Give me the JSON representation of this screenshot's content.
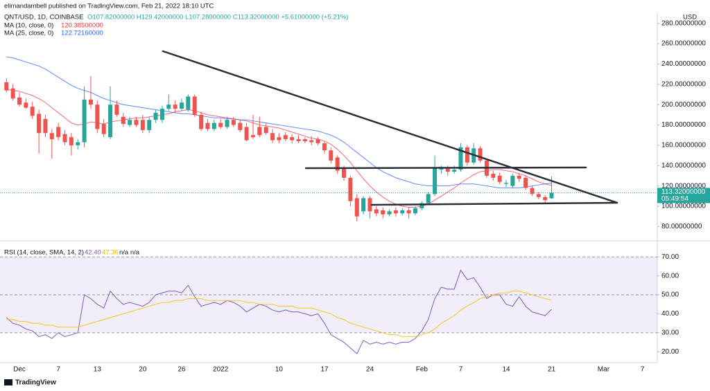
{
  "header": {
    "publisher": "elimandambell published on TradingView.com, Feb 21, 2022 18:10 UTC",
    "logo": "TradingView",
    "currency": "USD"
  },
  "chart_data": [
    {
      "type": "candlestick",
      "title": "QNT/USD, 1D, COINBASE",
      "ohlc_text": "O107.82000000 H129.42000000 L107.28000000 C113.32000000 +5.61000000 (+5.21%)",
      "last_price_label": "113.32000000",
      "countdown": "05:49:54",
      "up_color": "#26a69a",
      "down_color": "#ef5350",
      "categories": [
        null,
        null,
        "Dec",
        null,
        null,
        null,
        null,
        null,
        "7",
        null,
        null,
        null,
        null,
        null,
        "13",
        null,
        null,
        null,
        null,
        null,
        null,
        "20",
        null,
        null,
        null,
        null,
        null,
        "26",
        null,
        null,
        null,
        null,
        null,
        "2022",
        null,
        null,
        null,
        null,
        null,
        null,
        null,
        null,
        "10",
        null,
        null,
        null,
        null,
        null,
        null,
        "17",
        null,
        null,
        null,
        null,
        null,
        null,
        "24",
        null,
        null,
        null,
        null,
        null,
        null,
        null,
        "Feb",
        null,
        null,
        null,
        null,
        null,
        "7",
        null,
        null,
        null,
        null,
        null,
        null,
        "14",
        null,
        null,
        null,
        null,
        null,
        null,
        "21",
        null,
        null,
        null,
        null,
        null,
        null,
        null,
        "Mar",
        null,
        null,
        null,
        null,
        null,
        "7"
      ],
      "open": [
        222,
        216,
        207,
        202,
        198,
        191,
        186,
        172,
        178,
        171,
        168,
        160,
        163,
        205,
        200,
        181,
        168,
        200,
        188,
        180,
        185,
        185,
        175,
        185,
        185,
        196,
        200,
        196,
        195,
        208,
        190,
        182,
        176,
        182,
        178,
        185,
        182,
        178,
        170,
        178,
        178,
        172,
        168,
        170,
        168,
        166,
        166,
        165,
        166,
        162,
        155,
        148,
        138,
        128,
        108,
        95,
        108,
        97,
        96,
        92,
        96,
        93,
        96,
        93,
        98,
        103,
        112,
        136,
        137,
        134,
        136,
        158,
        143,
        157,
        145,
        132,
        130,
        122,
        120,
        130,
        128,
        118,
        112,
        109,
        107.82,
        null,
        null,
        null,
        null,
        null,
        null,
        null,
        null,
        null,
        null,
        null,
        null,
        null,
        null
      ],
      "high": [
        226,
        220,
        212,
        206,
        203,
        195,
        190,
        176,
        182,
        175,
        172,
        166,
        218,
        228,
        204,
        186,
        218,
        204,
        192,
        188,
        188,
        190,
        188,
        195,
        199,
        210,
        204,
        206,
        210,
        210,
        193,
        186,
        185,
        186,
        188,
        188,
        185,
        182,
        190,
        188,
        182,
        176,
        172,
        173,
        171,
        170,
        168,
        169,
        168,
        164,
        158,
        150,
        140,
        130,
        112,
        110,
        110,
        100,
        99,
        97,
        99,
        98,
        99,
        100,
        105,
        114,
        150,
        140,
        140,
        140,
        162,
        160,
        162,
        159,
        147,
        135,
        133,
        126,
        132,
        133,
        130,
        120,
        114,
        111,
        129.42,
        null,
        null,
        null,
        null,
        null,
        null,
        null,
        null,
        null,
        null,
        null,
        null,
        null,
        null
      ],
      "low": [
        212,
        204,
        198,
        196,
        186,
        152,
        168,
        147,
        165,
        160,
        150,
        156,
        158,
        196,
        172,
        168,
        166,
        188,
        178,
        178,
        178,
        172,
        172,
        182,
        182,
        194,
        192,
        194,
        193,
        188,
        174,
        174,
        174,
        176,
        176,
        178,
        173,
        164,
        166,
        168,
        170,
        162,
        162,
        164,
        162,
        162,
        162,
        160,
        160,
        152,
        142,
        132,
        125,
        100,
        85,
        92,
        88,
        90,
        88,
        90,
        90,
        91,
        88,
        91,
        96,
        101,
        110,
        132,
        130,
        132,
        134,
        140,
        141,
        143,
        128,
        125,
        122,
        119,
        118,
        124,
        116,
        110,
        107,
        103,
        107.28,
        null,
        null,
        null,
        null,
        null,
        null,
        null,
        null,
        null,
        null,
        null,
        null,
        null,
        null
      ],
      "close": [
        214,
        206,
        200,
        197,
        189,
        172,
        172,
        166,
        168,
        163,
        160,
        163,
        205,
        200,
        176,
        171,
        200,
        190,
        181,
        185,
        180,
        175,
        185,
        192,
        196,
        200,
        196,
        202,
        208,
        190,
        176,
        176,
        182,
        178,
        185,
        180,
        175,
        165,
        168,
        170,
        172,
        165,
        165,
        166,
        165,
        164,
        164,
        163,
        162,
        155,
        145,
        135,
        128,
        105,
        90,
        108,
        95,
        93,
        92,
        95,
        93,
        96,
        93,
        98,
        103,
        112,
        138,
        137,
        134,
        136,
        158,
        143,
        157,
        145,
        130,
        128,
        124,
        123,
        130,
        127,
        118,
        112,
        109,
        106,
        113.32,
        null,
        null,
        null,
        null,
        null,
        null,
        null,
        null,
        null,
        null,
        null,
        null,
        null,
        null
      ],
      "series": [
        {
          "name": "MA (10, close, 0)",
          "last_label": "120.38500000",
          "color": "#f23645",
          "values": [
            215,
            214,
            213,
            211,
            209,
            206,
            202,
            197,
            192,
            187,
            182,
            180,
            181,
            183,
            182,
            181,
            183,
            184,
            185,
            186,
            187,
            187,
            188,
            189,
            190,
            191,
            193,
            194,
            195,
            194,
            192,
            190,
            189,
            188,
            187,
            186,
            185,
            184,
            182,
            180,
            179,
            178,
            177,
            175,
            173,
            171,
            169,
            167,
            166,
            164,
            161,
            156,
            150,
            143,
            135,
            127,
            120,
            114,
            109,
            105,
            102,
            100,
            99,
            99,
            100,
            102,
            106,
            110,
            114,
            118,
            123,
            127,
            131,
            134,
            135,
            136,
            136,
            135,
            134,
            132,
            130,
            127,
            124,
            122,
            120.385,
            null,
            null,
            null,
            null,
            null,
            null,
            null,
            null,
            null,
            null,
            null,
            null,
            null,
            null
          ]
        },
        {
          "name": "MA (25, close, 0)",
          "last_label": "122.72160000",
          "color": "#2962ff",
          "values": [
            247,
            246,
            244,
            242,
            240,
            238,
            235,
            231,
            227,
            223,
            219,
            216,
            214,
            212,
            209,
            206,
            204,
            202,
            200,
            199,
            198,
            197,
            196,
            195,
            194,
            193,
            192,
            191,
            191,
            190,
            189,
            188,
            187,
            187,
            186,
            186,
            185,
            185,
            184,
            183,
            182,
            181,
            180,
            179,
            178,
            177,
            176,
            175,
            174,
            172,
            170,
            167,
            163,
            158,
            153,
            148,
            143,
            138,
            134,
            131,
            128,
            126,
            124,
            122,
            121,
            120,
            120,
            120,
            120,
            121,
            122,
            122,
            122,
            121,
            120,
            119,
            118,
            118,
            118,
            118,
            119,
            120,
            121,
            122,
            122.7216,
            null,
            null,
            null,
            null,
            null,
            null,
            null,
            null,
            null,
            null,
            null,
            null,
            null,
            null
          ]
        }
      ],
      "ylim": [
        68,
        288
      ],
      "yticks": [
        {
          "value": 80,
          "label": "80.00000000"
        },
        {
          "value": 100,
          "label": "100.00000000"
        },
        {
          "value": 120,
          "label": "120.00000000"
        },
        {
          "value": 140,
          "label": "140.00000000"
        },
        {
          "value": 160,
          "label": "160.00000000"
        },
        {
          "value": 180,
          "label": "180.00000000"
        },
        {
          "value": 200,
          "label": "200.00000000"
        },
        {
          "value": 220,
          "label": "220.00000000"
        },
        {
          "value": 240,
          "label": "240.00000000"
        },
        {
          "value": 260,
          "label": "260.00000000"
        },
        {
          "value": 280,
          "label": "280.00000000"
        }
      ]
    },
    {
      "type": "line",
      "title": "RSI (14, close, SMA, 14, 2)",
      "extra_text": "n/a n/a",
      "band_color": "#7e57c2",
      "levels": [
        70,
        50,
        30
      ],
      "series": [
        {
          "last_label": "42.40",
          "color": "#7e57c2",
          "values": [
            38,
            35,
            34,
            32,
            31,
            28,
            29,
            27,
            30,
            28,
            29,
            30,
            50,
            48,
            45,
            43,
            52,
            48,
            45,
            46,
            45,
            44,
            46,
            50,
            51,
            52,
            52,
            51,
            55,
            49,
            44,
            45,
            46,
            45,
            47,
            46,
            44,
            41,
            43,
            45,
            44,
            42,
            41,
            42,
            41,
            41,
            40,
            39,
            40,
            35,
            29,
            27,
            25,
            22,
            19,
            26,
            24,
            25,
            24,
            25,
            24,
            25,
            25,
            27,
            31,
            37,
            48,
            54,
            53,
            53,
            63,
            58,
            59,
            54,
            48,
            50,
            50,
            45,
            44,
            49,
            44,
            41,
            40,
            39,
            42.4,
            null,
            null,
            null,
            null,
            null,
            null,
            null,
            null,
            null,
            null,
            null,
            null,
            null,
            null
          ]
        },
        {
          "last_label": "47.36",
          "color": "#f5c518",
          "values": [
            37,
            37,
            36,
            36,
            35,
            35,
            34,
            34,
            33,
            33,
            33,
            33,
            34,
            35,
            36,
            37,
            38,
            39,
            40,
            41,
            42,
            43,
            44,
            45,
            46,
            46,
            47,
            47,
            48,
            48,
            48,
            47,
            47,
            47,
            47,
            47,
            47,
            46,
            46,
            45,
            45,
            45,
            44,
            44,
            44,
            43,
            43,
            43,
            42,
            41,
            40,
            38,
            37,
            35,
            34,
            33,
            32,
            31,
            30,
            29,
            29,
            28,
            28,
            28,
            29,
            30,
            32,
            35,
            37,
            39,
            42,
            44,
            46,
            48,
            49,
            50,
            51,
            51,
            52,
            52,
            51,
            50,
            49,
            48,
            47.36,
            null,
            null,
            null,
            null,
            null,
            null,
            null,
            null,
            null,
            null,
            null,
            null,
            null,
            null
          ]
        }
      ],
      "ylim": [
        15,
        77
      ],
      "yticks": [
        {
          "value": 20,
          "label": "20.00"
        },
        {
          "value": 30,
          "label": "30.00"
        },
        {
          "value": 40,
          "label": "40.00"
        },
        {
          "value": 50,
          "label": "50.00"
        },
        {
          "value": 60,
          "label": "60.00"
        },
        {
          "value": 70,
          "label": "70.00"
        }
      ]
    }
  ]
}
